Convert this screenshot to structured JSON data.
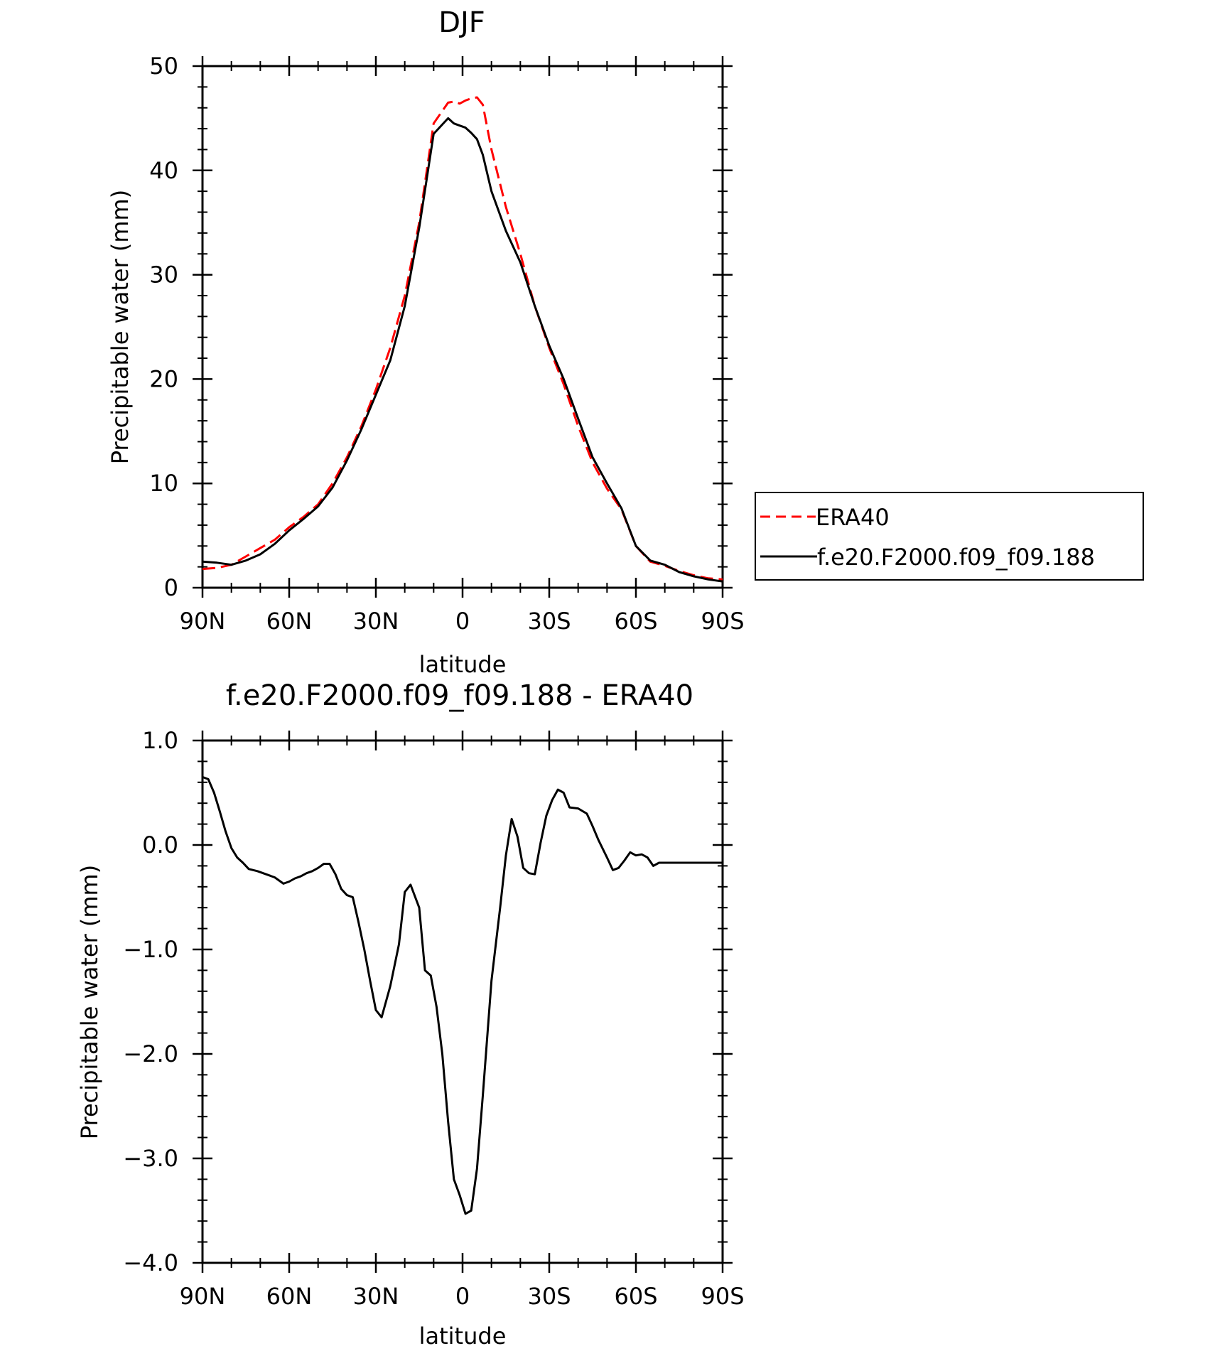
{
  "chart_data": [
    {
      "type": "line",
      "title": "DJF",
      "xlabel": "latitude",
      "ylabel": "Precipitable water (mm)",
      "xlim": [
        90,
        -90
      ],
      "ylim": [
        0,
        50
      ],
      "x_tick_values": [
        90,
        60,
        30,
        0,
        -30,
        -60,
        -90
      ],
      "x_tick_labels": [
        "90N",
        "60N",
        "30N",
        "0",
        "30S",
        "60S",
        "90S"
      ],
      "y_tick_values": [
        0,
        10,
        20,
        30,
        40,
        50
      ],
      "y_tick_labels": [
        "0",
        "10",
        "20",
        "30",
        "40",
        "50"
      ],
      "legend_placement": "right, outside plot",
      "series": [
        {
          "name": "ERA40",
          "color": "#ff0000",
          "dash": "dashed",
          "x": [
            90,
            85,
            80,
            75,
            70,
            65,
            60,
            55,
            50,
            45,
            40,
            35,
            30,
            25,
            20,
            15,
            10,
            5,
            3,
            1,
            -1,
            -3,
            -5,
            -7,
            -10,
            -15,
            -20,
            -25,
            -30,
            -35,
            -40,
            -45,
            -50,
            -55,
            -60,
            -65,
            -70,
            -75,
            -80,
            -85,
            -90
          ],
          "y": [
            1.8,
            1.9,
            2.2,
            3.0,
            3.8,
            4.6,
            5.8,
            6.8,
            8.0,
            10.0,
            12.5,
            15.5,
            19.0,
            23.0,
            28.0,
            35.0,
            44.5,
            46.5,
            46.6,
            46.4,
            46.7,
            46.9,
            47.0,
            46.3,
            42.0,
            36.5,
            32.0,
            27.0,
            23.0,
            19.5,
            15.5,
            12.0,
            9.5,
            7.5,
            4.0,
            2.5,
            2.1,
            1.6,
            1.2,
            0.9,
            0.8
          ],
          "y_note": ""
        },
        {
          "name": "f.e20.F2000.f09_f09.188",
          "color": "#000000",
          "dash": "solid",
          "x": [
            90,
            85,
            80,
            75,
            70,
            65,
            60,
            55,
            50,
            45,
            40,
            35,
            30,
            25,
            20,
            15,
            10,
            5,
            3,
            1,
            -1,
            -3,
            -5,
            -7,
            -10,
            -15,
            -20,
            -25,
            -30,
            -35,
            -40,
            -45,
            -50,
            -55,
            -60,
            -65,
            -70,
            -75,
            -80,
            -85,
            -90
          ],
          "y": [
            2.5,
            2.4,
            2.2,
            2.6,
            3.2,
            4.2,
            5.5,
            6.6,
            7.8,
            9.6,
            12.2,
            15.2,
            18.5,
            21.8,
            27.0,
            34.5,
            43.5,
            45.0,
            44.5,
            44.3,
            44.1,
            43.6,
            43.0,
            41.5,
            38.0,
            34.2,
            31.2,
            27.0,
            23.2,
            20.0,
            16.2,
            12.5,
            10.0,
            7.6,
            4.0,
            2.6,
            2.2,
            1.5,
            1.1,
            0.8,
            0.6
          ]
        }
      ]
    },
    {
      "type": "line",
      "title": "f.e20.F2000.f09_f09.188 - ERA40",
      "xlabel": "latitude",
      "ylabel": "Precipitable water (mm)",
      "xlim": [
        90,
        -90
      ],
      "ylim": [
        -4.0,
        1.0
      ],
      "x_tick_values": [
        90,
        60,
        30,
        0,
        -30,
        -60,
        -90
      ],
      "x_tick_labels": [
        "90N",
        "60N",
        "30N",
        "0",
        "30S",
        "60S",
        "90S"
      ],
      "y_tick_values": [
        1.0,
        0.0,
        -1.0,
        -2.0,
        -3.0,
        -4.0
      ],
      "y_tick_labels": [
        "1.0",
        "0.0",
        "−1.0",
        "−2.0",
        "−3.0",
        "−4.0"
      ],
      "series": [
        {
          "color": "#000000",
          "dash": "solid",
          "x": [
            90,
            88,
            86,
            84,
            82,
            80,
            78,
            76,
            74,
            71,
            68,
            65,
            62,
            60,
            58,
            56,
            54,
            52,
            50,
            48,
            46,
            44,
            42,
            40,
            38,
            36,
            34,
            32,
            30,
            28,
            25,
            22,
            20,
            18,
            15,
            13,
            11,
            9,
            7,
            5,
            3,
            1,
            -1,
            -3,
            -5,
            -7,
            -10,
            -13,
            -15,
            -17,
            -19,
            -21,
            -23,
            -25,
            -27,
            -29,
            -31,
            -33,
            -35,
            -37,
            -40,
            -43,
            -45,
            -47,
            -50,
            -52,
            -54,
            -56,
            -58,
            -60,
            -62,
            -64,
            -66,
            -68,
            -70,
            -72,
            -74,
            -76,
            -78,
            -80,
            -82,
            -84,
            -86,
            -88,
            -90
          ],
          "y": [
            0.65,
            0.63,
            0.5,
            0.32,
            0.13,
            -0.03,
            -0.12,
            -0.17,
            -0.23,
            -0.25,
            -0.28,
            -0.31,
            -0.37,
            -0.35,
            -0.32,
            -0.3,
            -0.27,
            -0.25,
            -0.22,
            -0.18,
            -0.18,
            -0.28,
            -0.42,
            -0.48,
            -0.5,
            -0.74,
            -1.0,
            -1.3,
            -1.58,
            -1.65,
            -1.35,
            -0.95,
            -0.45,
            -0.38,
            -0.6,
            -1.2,
            -1.25,
            -1.55,
            -2.0,
            -2.65,
            -3.2,
            -3.35,
            -3.53,
            -3.5,
            -3.1,
            -2.4,
            -1.3,
            -0.6,
            -0.1,
            0.25,
            0.08,
            -0.22,
            -0.27,
            -0.28,
            0.02,
            0.28,
            0.43,
            0.53,
            0.5,
            0.36,
            0.35,
            0.3,
            0.18,
            0.05,
            -0.12,
            -0.24,
            -0.22,
            -0.15,
            -0.07,
            -0.1,
            -0.09,
            -0.12,
            -0.2,
            -0.17,
            -0.17,
            -0.17,
            -0.17,
            -0.17,
            -0.17,
            -0.17,
            -0.17,
            -0.17,
            -0.17,
            -0.17,
            -0.17
          ]
        }
      ]
    }
  ]
}
